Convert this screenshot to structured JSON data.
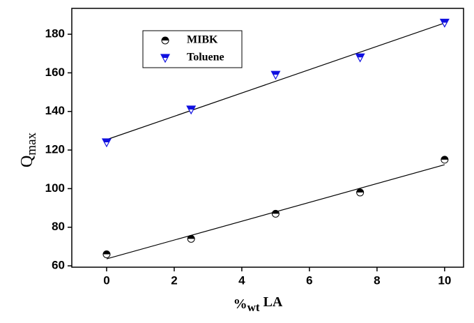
{
  "chart_data": {
    "type": "scatter",
    "x_label": {
      "prefix": "%",
      "sub": "wt",
      "suffix": "LA"
    },
    "y_label": {
      "main": "Q",
      "sub": "max"
    },
    "x": [
      0,
      2.5,
      5,
      7.5,
      10
    ],
    "series": [
      {
        "name": "MIBK",
        "color": "#000000",
        "marker": "circle",
        "values": [
          66,
          74,
          87,
          98,
          115
        ]
      },
      {
        "name": "Toluene",
        "color": "#1010e0",
        "marker": "triangle",
        "values": [
          124,
          141,
          159,
          168,
          186
        ]
      }
    ],
    "xlim": [
      -1.03,
      10.56
    ],
    "ylim": [
      59.3,
      193.4
    ],
    "xticks": [
      0,
      2,
      4,
      6,
      8,
      10
    ],
    "yticks": [
      60,
      80,
      100,
      120,
      140,
      160,
      180
    ],
    "fit_lines": true,
    "legend": "upper left"
  }
}
